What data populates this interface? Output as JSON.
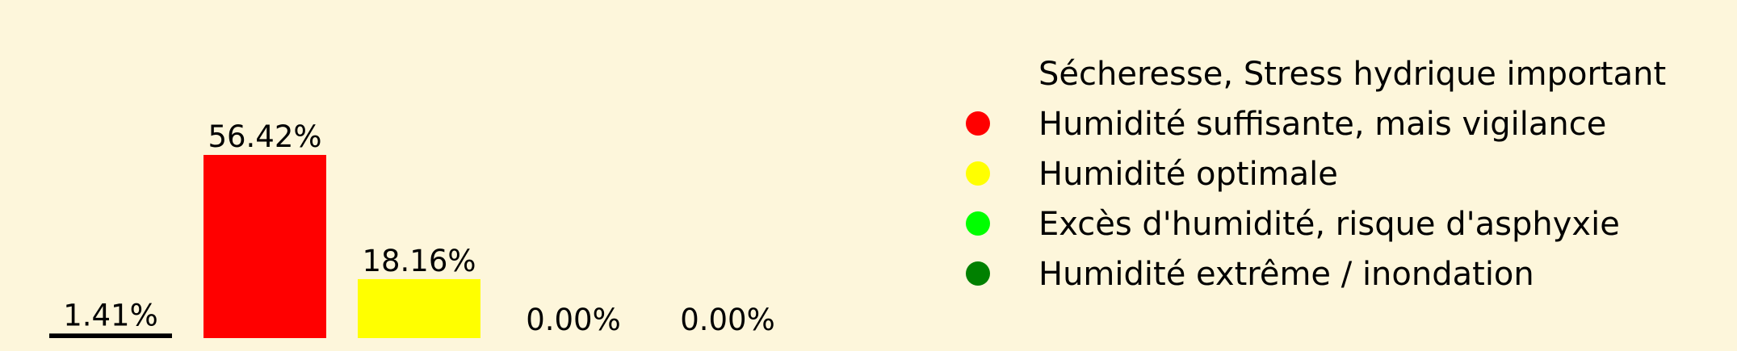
{
  "chart_data": {
    "type": "bar",
    "categories": [
      "Sécheresse, Stress hydrique important",
      "Humidité suffisante, mais vigilance",
      "Humidité optimale",
      "Excès d'humidité, risque d'asphyxie",
      "Humidité extrême / inondation"
    ],
    "values": [
      1.41,
      56.42,
      18.16,
      0.0,
      0.0
    ],
    "value_labels": [
      "1.41%",
      "56.42%",
      "18.16%",
      "0.00%",
      "0.00%"
    ],
    "colors": [
      "#000000",
      "#ff0000",
      "#ffff00",
      "#00ff00",
      "#008000"
    ],
    "title": "",
    "xlabel": "",
    "ylabel": "",
    "grid": false,
    "legend_position": "right",
    "background_color": "#fdf6db"
  }
}
